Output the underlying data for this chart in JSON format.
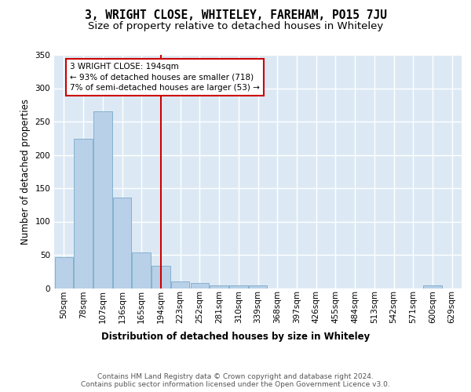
{
  "title": "3, WRIGHT CLOSE, WHITELEY, FAREHAM, PO15 7JU",
  "subtitle": "Size of property relative to detached houses in Whiteley",
  "xlabel": "Distribution of detached houses by size in Whiteley",
  "ylabel": "Number of detached properties",
  "bar_labels": [
    "50sqm",
    "78sqm",
    "107sqm",
    "136sqm",
    "165sqm",
    "194sqm",
    "223sqm",
    "252sqm",
    "281sqm",
    "310sqm",
    "339sqm",
    "368sqm",
    "397sqm",
    "426sqm",
    "455sqm",
    "484sqm",
    "513sqm",
    "542sqm",
    "571sqm",
    "600sqm",
    "629sqm"
  ],
  "bar_values": [
    46,
    224,
    265,
    136,
    54,
    33,
    10,
    8,
    4,
    4,
    4,
    0,
    0,
    0,
    0,
    0,
    0,
    0,
    0,
    4,
    0
  ],
  "bar_color": "#b8d0e8",
  "bar_edge_color": "#7aaac8",
  "vline_x": 5,
  "vline_color": "#cc0000",
  "annotation_text": "3 WRIGHT CLOSE: 194sqm\n← 93% of detached houses are smaller (718)\n7% of semi-detached houses are larger (53) →",
  "annotation_box_color": "#ffffff",
  "annotation_box_edge": "#cc0000",
  "ylim": [
    0,
    350
  ],
  "yticks": [
    0,
    50,
    100,
    150,
    200,
    250,
    300,
    350
  ],
  "background_color": "#dce9f5",
  "grid_color": "#ffffff",
  "footer": "Contains HM Land Registry data © Crown copyright and database right 2024.\nContains public sector information licensed under the Open Government Licence v3.0.",
  "title_fontsize": 10.5,
  "subtitle_fontsize": 9.5,
  "tick_fontsize": 7.5,
  "ylabel_fontsize": 8.5,
  "xlabel_fontsize": 8.5,
  "footer_fontsize": 6.5
}
